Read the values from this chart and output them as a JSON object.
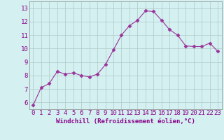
{
  "x": [
    0,
    1,
    2,
    3,
    4,
    5,
    6,
    7,
    8,
    9,
    10,
    11,
    12,
    13,
    14,
    15,
    16,
    17,
    18,
    19,
    20,
    21,
    22,
    23
  ],
  "y": [
    5.8,
    7.1,
    7.4,
    8.3,
    8.1,
    8.2,
    8.0,
    7.9,
    8.1,
    8.8,
    9.9,
    11.0,
    11.7,
    12.1,
    12.8,
    12.75,
    12.1,
    11.4,
    11.0,
    10.2,
    10.15,
    10.15,
    10.4,
    9.8
  ],
  "line_color": "#993399",
  "marker": "D",
  "markersize": 2.5,
  "linewidth": 0.8,
  "xlabel": "Windchill (Refroidissement éolien,°C)",
  "xlim": [
    -0.5,
    23.5
  ],
  "ylim": [
    5.5,
    13.5
  ],
  "yticks": [
    6,
    7,
    8,
    9,
    10,
    11,
    12,
    13
  ],
  "xticks": [
    0,
    1,
    2,
    3,
    4,
    5,
    6,
    7,
    8,
    9,
    10,
    11,
    12,
    13,
    14,
    15,
    16,
    17,
    18,
    19,
    20,
    21,
    22,
    23
  ],
  "bg_color": "#d4f0f0",
  "grid_color": "#b0c8c8",
  "tick_label_color": "#880088",
  "xlabel_color": "#880088",
  "xlabel_fontsize": 6.5,
  "tick_fontsize": 6.5
}
